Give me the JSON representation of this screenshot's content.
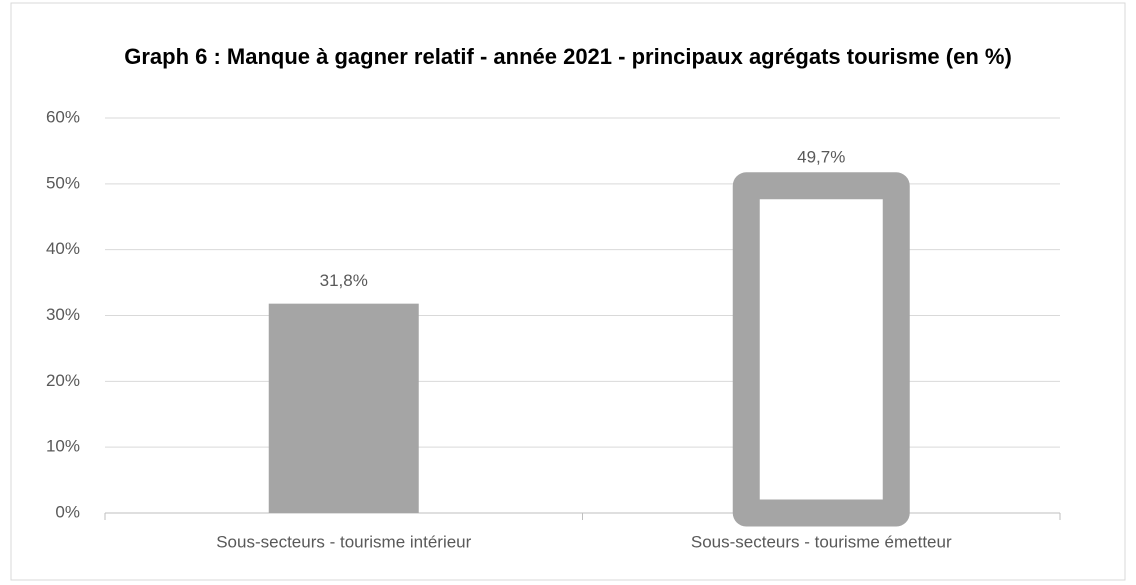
{
  "chart_data": {
    "type": "bar",
    "title": "Graph 6 : Manque à gagner relatif - année 2021 - principaux agrégats tourisme (en %)",
    "categories": [
      "Sous-secteurs - tourisme intérieur",
      "Sous-secteurs - tourisme émetteur"
    ],
    "values": [
      31.8,
      49.7
    ],
    "value_labels": [
      "31,8%",
      "49,7%"
    ],
    "bar_styles": [
      "filled",
      "outlined"
    ],
    "color": "#a5a5a5",
    "ylim": [
      0,
      60
    ],
    "yticks": [
      {
        "value": 0,
        "label": "0%"
      },
      {
        "value": 10,
        "label": "10%"
      },
      {
        "value": 20,
        "label": "20%"
      },
      {
        "value": 30,
        "label": "30%"
      },
      {
        "value": 40,
        "label": "40%"
      },
      {
        "value": 50,
        "label": "50%"
      },
      {
        "value": 60,
        "label": "60%"
      }
    ],
    "grid": true
  }
}
